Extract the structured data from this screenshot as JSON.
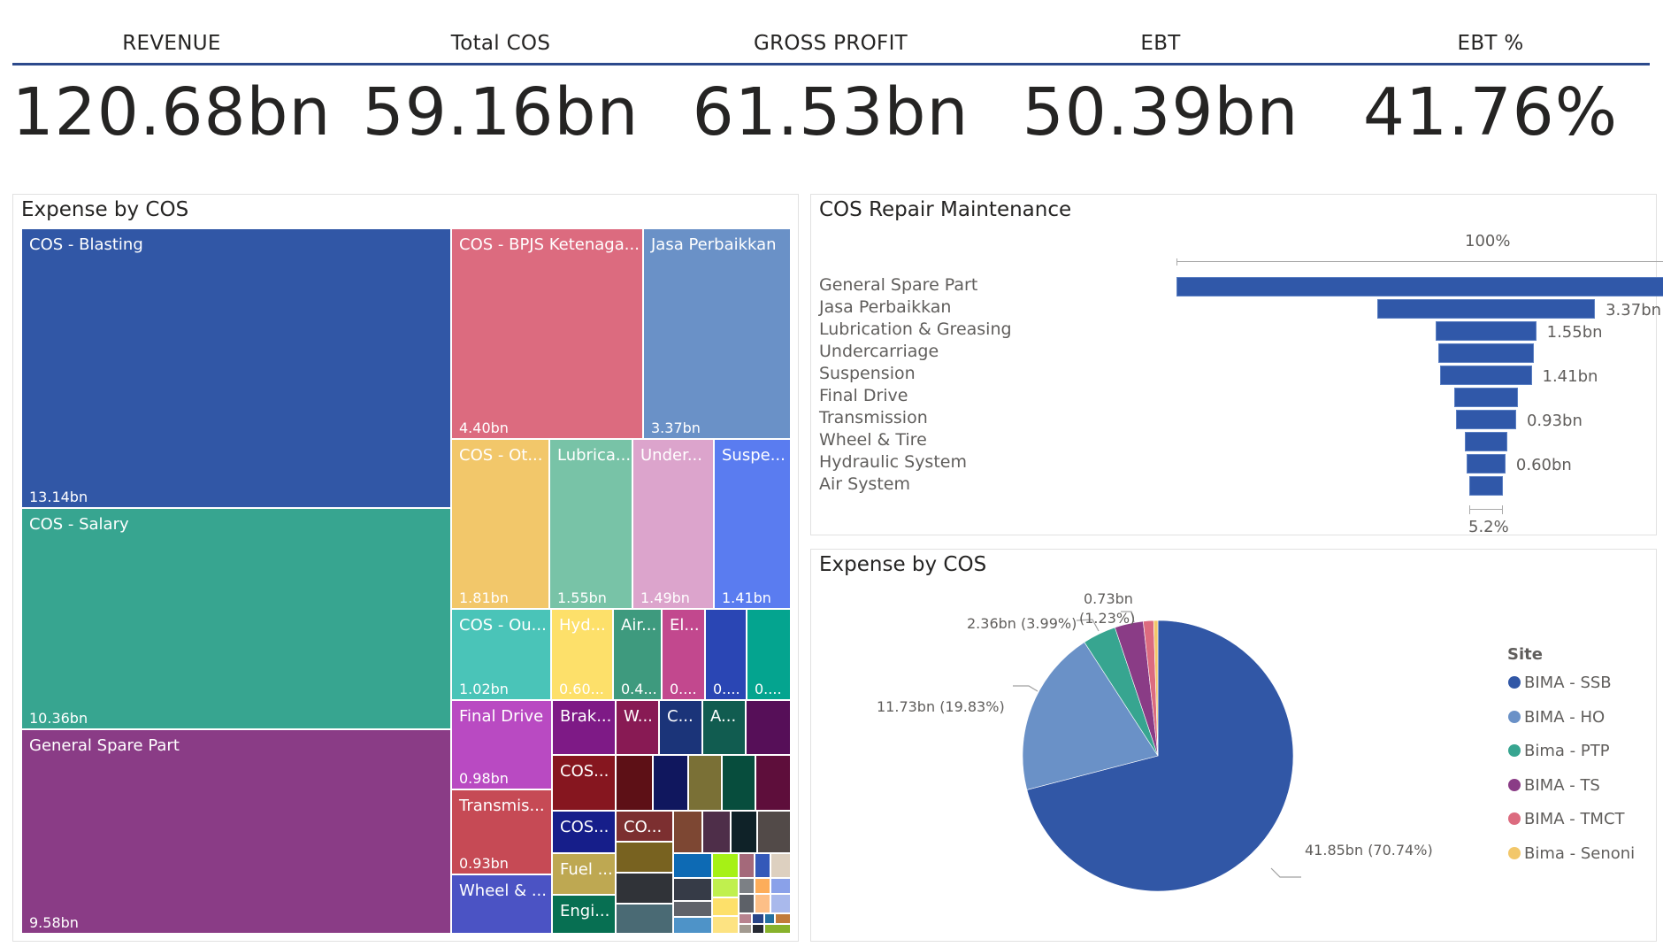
{
  "kpis": [
    {
      "label": "REVENUE",
      "value": "120.68bn"
    },
    {
      "label": "Total COS",
      "value": "59.16bn"
    },
    {
      "label": "GROSS PROFIT",
      "value": "61.53bn"
    },
    {
      "label": "EBT",
      "value": "50.39bn"
    },
    {
      "label": "EBT %",
      "value": "41.76%"
    }
  ],
  "treemap": {
    "title": "Expense by COS",
    "cells": [
      {
        "name": "COS - Blasting",
        "value": "13.14bn",
        "color": "#3157a6"
      },
      {
        "name": "COS - Salary",
        "value": "10.36bn",
        "color": "#37a590"
      },
      {
        "name": "General Spare Part",
        "value": "9.58bn",
        "color": "#8a3c86"
      },
      {
        "name": "COS - BPJS Ketenaga...",
        "value": "4.40bn",
        "color": "#dc6b7f"
      },
      {
        "name": "Jasa Perbaikkan",
        "value": "3.37bn",
        "color": "#6a91c7"
      },
      {
        "name": "COS - Ot...",
        "value": "1.81bn",
        "color": "#f2c76a"
      },
      {
        "name": "Lubrica...",
        "value": "1.55bn",
        "color": "#78c3a7"
      },
      {
        "name": "Under...",
        "value": "1.49bn",
        "color": "#dca4cc"
      },
      {
        "name": "Suspe...",
        "value": "1.41bn",
        "color": "#5a7cf0"
      },
      {
        "name": "COS - Ou...",
        "value": "1.02bn",
        "color": "#4ac4b8"
      },
      {
        "name": "Hyd...",
        "value": "0.60...",
        "color": "#fde06a"
      },
      {
        "name": "Air...",
        "value": "0.4...",
        "color": "#3e9a7e"
      },
      {
        "name": "El...",
        "value": "0....",
        "color": "#c2488e"
      },
      {
        "name": "",
        "value": "0....",
        "color": "#2a46b4"
      },
      {
        "name": "",
        "value": "0....",
        "color": "#04a48f"
      },
      {
        "name": "Final Drive",
        "value": "0.98bn",
        "color": "#b94ac2"
      },
      {
        "name": "Brak...",
        "value": "",
        "color": "#7e1a86"
      },
      {
        "name": "W...",
        "value": "",
        "color": "#881a54"
      },
      {
        "name": "C...",
        "value": "",
        "color": "#1b3479"
      },
      {
        "name": "A...",
        "value": "",
        "color": "#115c50"
      },
      {
        "name": "",
        "value": "",
        "color": "#560f58"
      },
      {
        "name": "Transmis...",
        "value": "0.93bn",
        "color": "#c64a55"
      },
      {
        "name": "COS...",
        "value": "",
        "color": "#86161f"
      },
      {
        "name": "Wheel & ...",
        "value": "",
        "color": "#4b53c4"
      },
      {
        "name": "COS...",
        "value": "",
        "color": "#161e8a"
      },
      {
        "name": "CO...",
        "value": "",
        "color": "#7c2f30"
      },
      {
        "name": "Fuel ...",
        "value": "",
        "color": "#bea852"
      },
      {
        "name": "Engi...",
        "value": "",
        "color": "#076f52"
      }
    ],
    "small_cell_colors": [
      "#5d1016",
      "#10175e",
      "#7a7036",
      "#074d3d",
      "#5e0e3b",
      "#7d4733",
      "#4e2e49",
      "#0f2228",
      "#524a48",
      "#786220",
      "#303338",
      "#4a6a74",
      "#0d6ab4",
      "#a6f115",
      "#a4697a",
      "#3459b9",
      "#ddd0c0",
      "#363b47",
      "#60636a",
      "#4e93c8",
      "#c0f04e",
      "#7c8085",
      "#fdad5a",
      "#8aa1e9",
      "#fde06a",
      "#5d6168",
      "#fdbf87",
      "#a9b9ec",
      "#fde382",
      "#b8838f",
      "#294588",
      "#2470a0",
      "#c17b3b",
      "#a29a90",
      "#262a33",
      "#88b22c"
    ]
  },
  "funnel": {
    "title": "COS Repair Maintenance",
    "top_pct_label": "100%",
    "bottom_pct_label": "5.2%",
    "color": "#3058a9",
    "items": [
      {
        "label": "General Spare Part",
        "value": 9.58,
        "value_label": ""
      },
      {
        "label": "Jasa Perbaikkan",
        "value": 3.37,
        "value_label": "3.37bn"
      },
      {
        "label": "Lubrication & Greasing",
        "value": 1.55,
        "value_label": "1.55bn"
      },
      {
        "label": "Undercarriage",
        "value": 1.49,
        "value_label": ""
      },
      {
        "label": "Suspension",
        "value": 1.41,
        "value_label": "1.41bn"
      },
      {
        "label": "Final Drive",
        "value": 0.98,
        "value_label": ""
      },
      {
        "label": "Transmission",
        "value": 0.93,
        "value_label": "0.93bn"
      },
      {
        "label": "Wheel & Tire",
        "value": 0.65,
        "value_label": ""
      },
      {
        "label": "Hydraulic System",
        "value": 0.6,
        "value_label": "0.60bn"
      },
      {
        "label": "Air System",
        "value": 0.5,
        "value_label": ""
      }
    ]
  },
  "pie": {
    "title": "Expense by COS",
    "legend_title": "Site",
    "slices": [
      {
        "name": "BIMA - SSB",
        "value": 41.85,
        "pct": 70.74,
        "label": "41.85bn (70.74%)",
        "color": "#3157a6"
      },
      {
        "name": "BIMA - HO",
        "value": 11.73,
        "pct": 19.83,
        "label": "11.73bn (19.83%)",
        "color": "#6a91c7"
      },
      {
        "name": "Bima - PTP",
        "value": 2.36,
        "pct": 3.99,
        "label": "2.36bn (3.99%)",
        "color": "#37a590"
      },
      {
        "name": "BIMA - TS",
        "value": 2.0,
        "pct": 3.4,
        "label": "",
        "color": "#8a3c86"
      },
      {
        "name": "BIMA - TMCT",
        "value": 0.73,
        "pct": 1.23,
        "label": "0.73bn (1.23%)",
        "color": "#dc6b7f"
      },
      {
        "name": "Bima - Senoni",
        "value": 0.3,
        "pct": 0.5,
        "label": "",
        "color": "#f2c76a"
      }
    ],
    "label_a": "0.73bn",
    "label_b": "(1.23%)"
  }
}
